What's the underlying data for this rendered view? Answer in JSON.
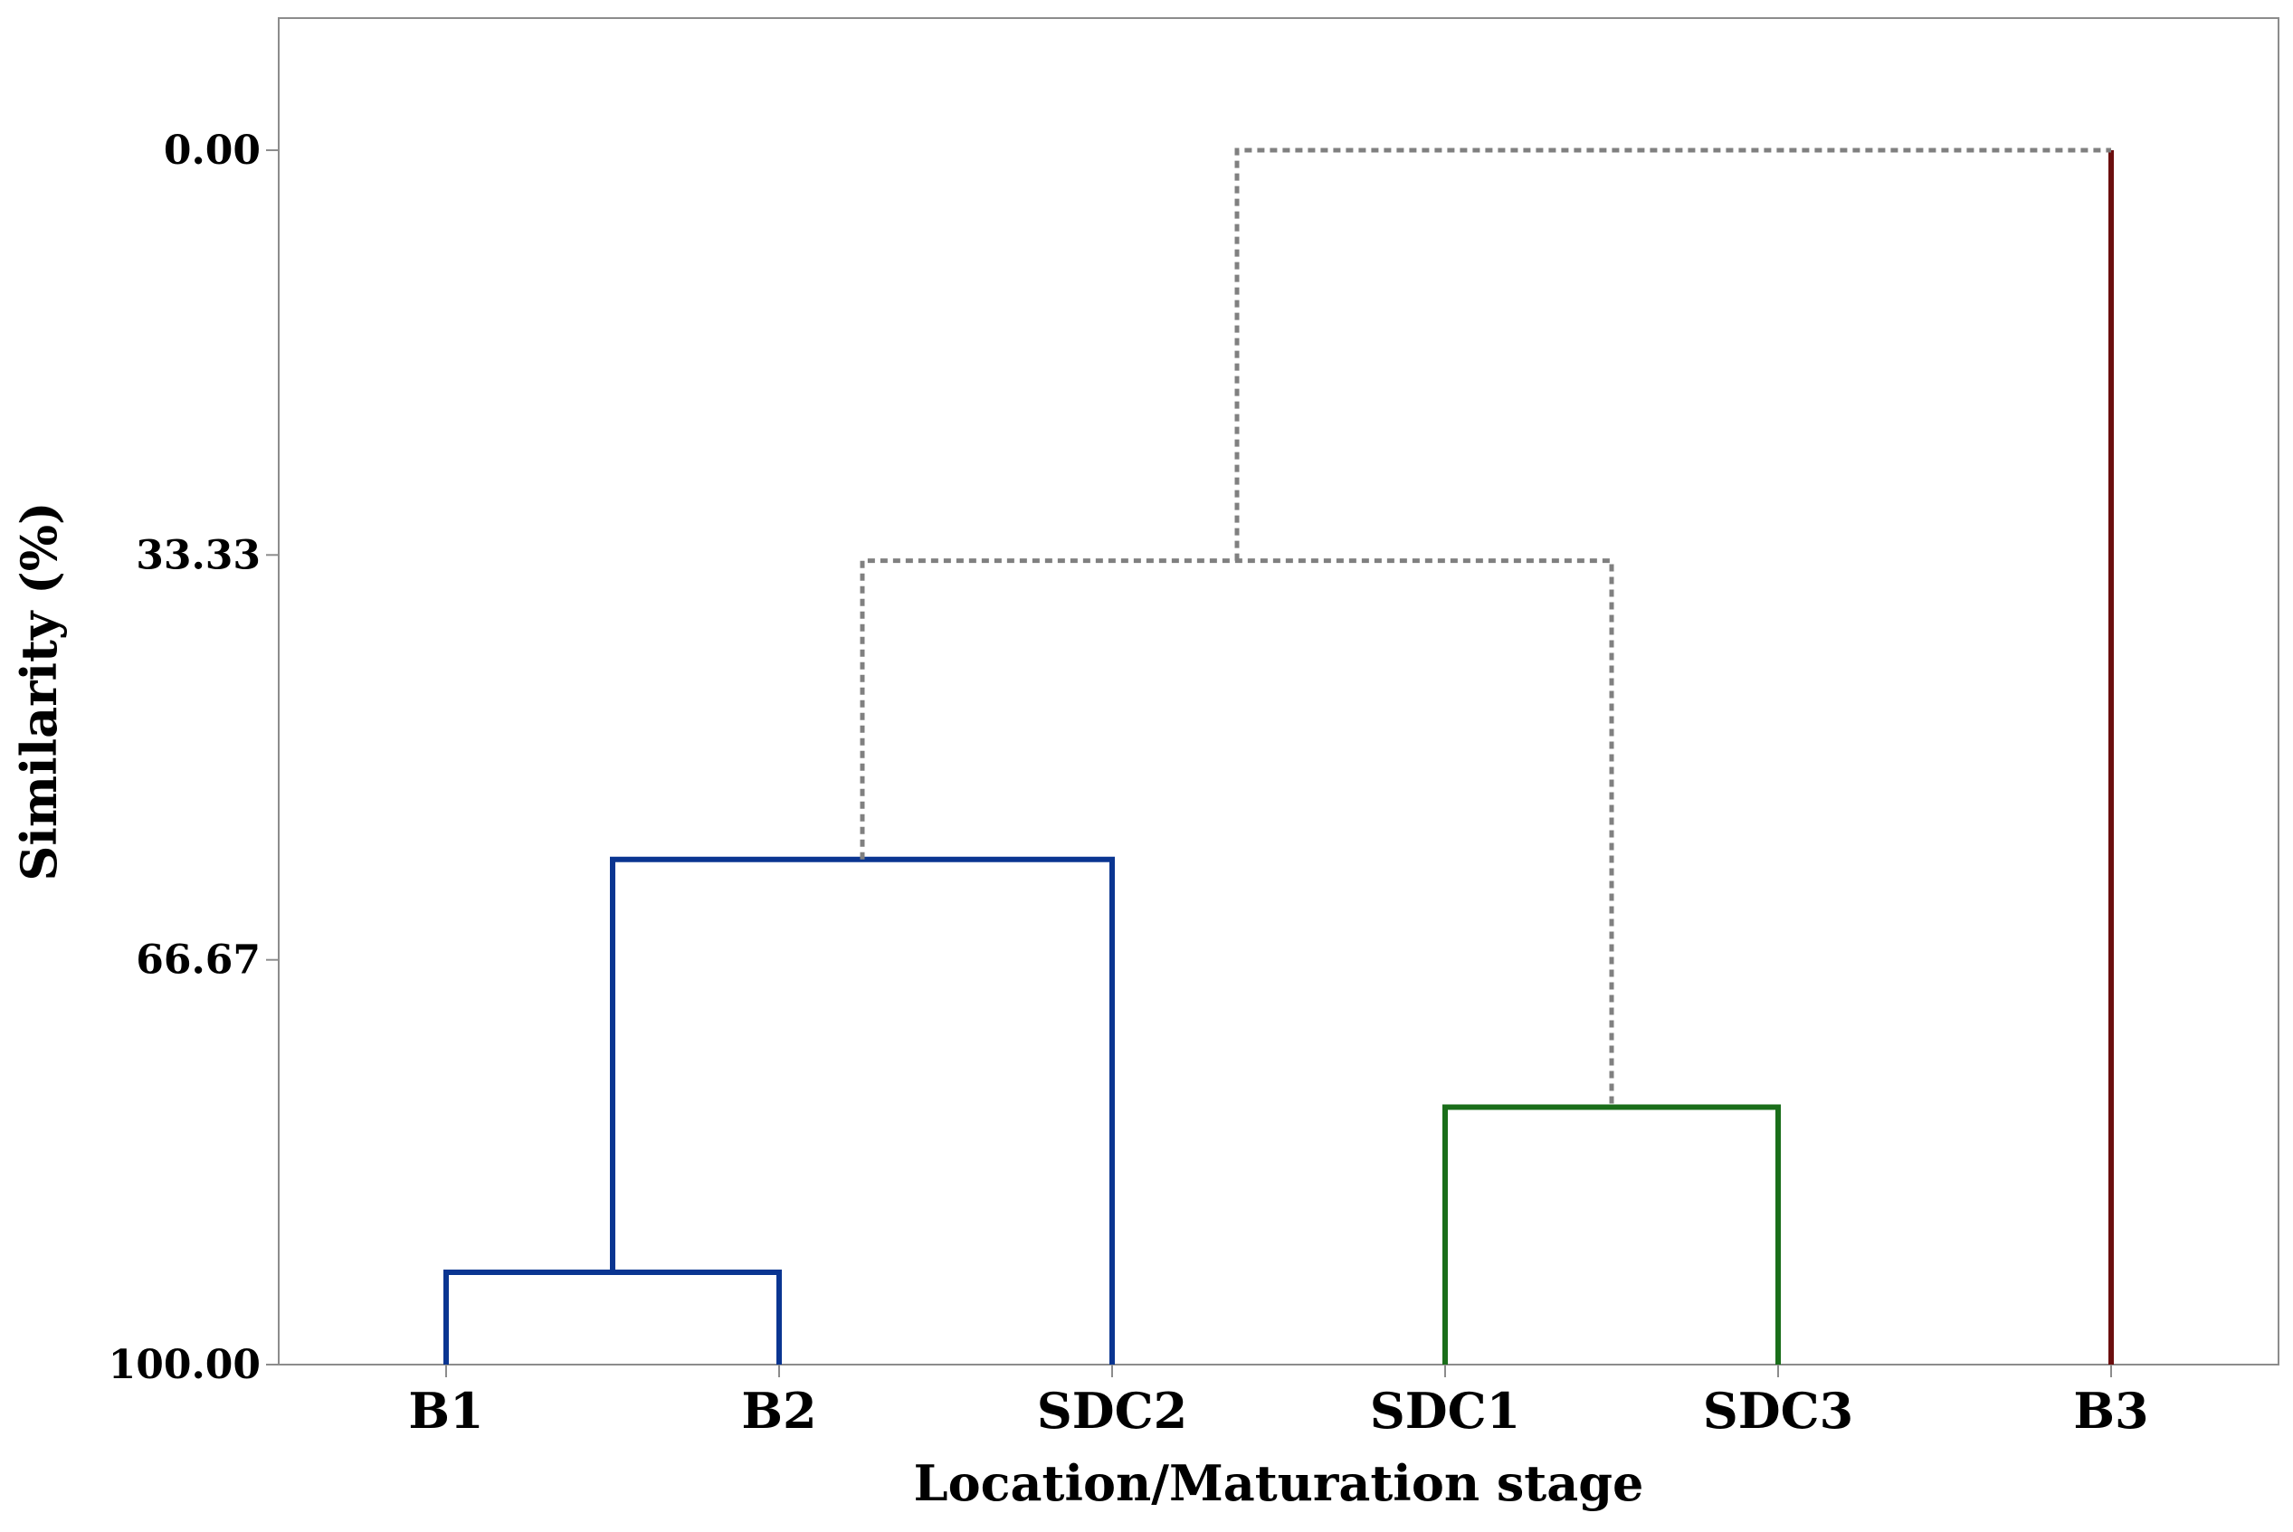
{
  "chart_data": {
    "type": "dendrogram",
    "title": "",
    "xlabel": "Location/Maturation stage",
    "ylabel": "Similarity (%)",
    "ylim": [
      0,
      100
    ],
    "y_inverted": true,
    "y_ticks": [
      {
        "value": 0,
        "label": "0.00"
      },
      {
        "value": 33.33,
        "label": "33.33"
      },
      {
        "value": 66.67,
        "label": "66.67"
      },
      {
        "value": 100,
        "label": "100.00"
      }
    ],
    "leaves": [
      "B1",
      "B2",
      "SDC2",
      "SDC1",
      "SDC3",
      "B3"
    ],
    "clusters": [
      {
        "name": "cluster-1",
        "leaves": [
          "B1",
          "B2",
          "SDC2"
        ],
        "color": "#0a3591"
      },
      {
        "name": "cluster-2",
        "leaves": [
          "SDC1",
          "SDC3"
        ],
        "color": "#1a6e1a"
      },
      {
        "name": "cluster-3",
        "leaves": [
          "B3"
        ],
        "color": "#6b0f0f"
      }
    ],
    "merges": [
      {
        "left": "B1",
        "right": "B2",
        "similarity": 92.4,
        "style": "solid",
        "color": "#0a3591"
      },
      {
        "left": "B1+B2",
        "right": "SDC2",
        "similarity": 58.4,
        "style": "solid",
        "color": "#0a3591"
      },
      {
        "left": "SDC1",
        "right": "SDC3",
        "similarity": 78.8,
        "style": "solid",
        "color": "#1a6e1a"
      },
      {
        "left": "B1+B2+SDC2",
        "right": "SDC1+SDC3",
        "similarity": 33.8,
        "style": "dotted",
        "color": "#808080"
      },
      {
        "left": "B1+B2+SDC2+SDC1+SDC3",
        "right": "B3",
        "similarity": 0,
        "style": "dotted",
        "color": "#808080"
      }
    ],
    "grid": false,
    "legend": "none"
  }
}
